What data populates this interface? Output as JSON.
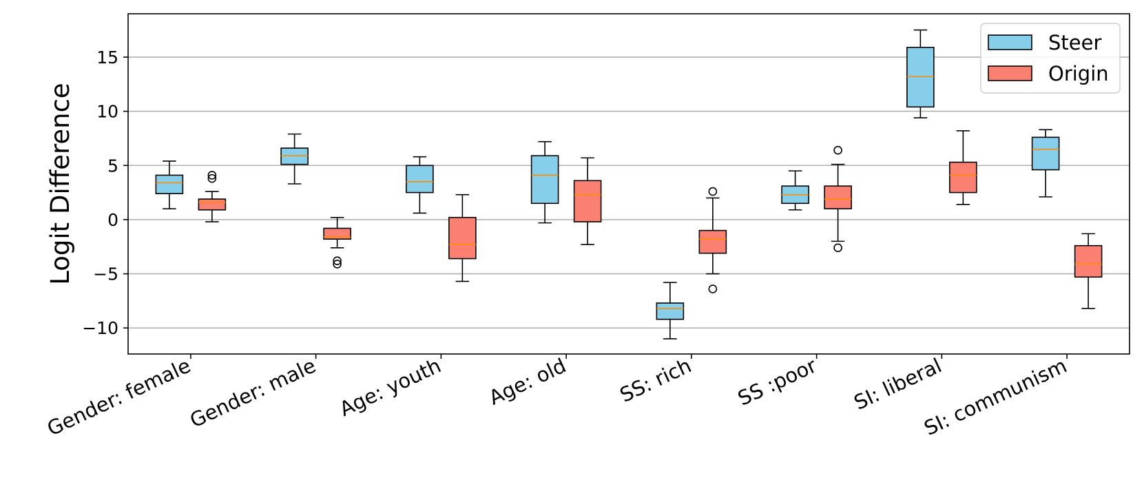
{
  "chart_data": {
    "type": "boxplot",
    "ylabel": "Logit Difference",
    "xlabel": "",
    "title": "",
    "ylim": [
      -12.4,
      19.0
    ],
    "yticks": [
      -10,
      -5,
      0,
      5,
      10,
      15
    ],
    "ytick_labels": [
      "−10",
      "−5",
      "0",
      "5",
      "10",
      "15"
    ],
    "grid": "horizontal",
    "legend_position": "top-right",
    "categories": [
      "Gender: female",
      "Gender: male",
      "Age: youth",
      "Age: old",
      "SS: rich",
      "SS :poor",
      "SI: liberal",
      "SI: communism"
    ],
    "series": [
      {
        "name": "Steer",
        "color": "#87ceeb",
        "boxes": [
          {
            "whislo": 1.0,
            "q1": 2.4,
            "med": 3.4,
            "q3": 4.1,
            "whishi": 5.4,
            "fliers": []
          },
          {
            "whislo": 3.3,
            "q1": 5.1,
            "med": 5.9,
            "q3": 6.6,
            "whishi": 7.9,
            "fliers": []
          },
          {
            "whislo": 0.6,
            "q1": 2.5,
            "med": 3.5,
            "q3": 5.0,
            "whishi": 5.8,
            "fliers": []
          },
          {
            "whislo": -0.3,
            "q1": 1.5,
            "med": 4.1,
            "q3": 5.9,
            "whishi": 7.2,
            "fliers": []
          },
          {
            "whislo": -11.0,
            "q1": -9.2,
            "med": -8.2,
            "q3": -7.7,
            "whishi": -5.8,
            "fliers": []
          },
          {
            "whislo": 0.9,
            "q1": 1.5,
            "med": 2.3,
            "q3": 3.1,
            "whishi": 4.5,
            "fliers": []
          },
          {
            "whislo": 9.4,
            "q1": 10.4,
            "med": 13.2,
            "q3": 15.9,
            "whishi": 17.5,
            "fliers": []
          },
          {
            "whislo": 2.1,
            "q1": 4.6,
            "med": 6.5,
            "q3": 7.6,
            "whishi": 8.3,
            "fliers": []
          }
        ]
      },
      {
        "name": "Origin",
        "color": "#fa8072",
        "boxes": [
          {
            "whislo": -0.2,
            "q1": 0.9,
            "med": 1.6,
            "q3": 1.9,
            "whishi": 2.6,
            "fliers": [
              3.8,
              4.1
            ]
          },
          {
            "whislo": -2.6,
            "q1": -1.8,
            "med": -1.6,
            "q3": -0.8,
            "whishi": 0.2,
            "fliers": [
              -3.8,
              -4.1
            ]
          },
          {
            "whislo": -5.7,
            "q1": -3.6,
            "med": -2.3,
            "q3": 0.2,
            "whishi": 2.3,
            "fliers": []
          },
          {
            "whislo": -2.3,
            "q1": -0.2,
            "med": 2.3,
            "q3": 3.6,
            "whishi": 5.7,
            "fliers": []
          },
          {
            "whislo": -5.0,
            "q1": -3.1,
            "med": -1.8,
            "q3": -1.0,
            "whishi": 2.0,
            "fliers": [
              2.6,
              -6.4
            ]
          },
          {
            "whislo": -2.0,
            "q1": 1.0,
            "med": 1.9,
            "q3": 3.1,
            "whishi": 5.1,
            "fliers": [
              6.4,
              -2.6
            ]
          },
          {
            "whislo": 1.4,
            "q1": 2.5,
            "med": 4.1,
            "q3": 5.3,
            "whishi": 8.2,
            "fliers": []
          },
          {
            "whislo": -8.2,
            "q1": -5.3,
            "med": -4.1,
            "q3": -2.4,
            "whishi": -1.3,
            "fliers": []
          }
        ]
      }
    ]
  },
  "colors": {
    "median": "#ff8c00",
    "grid": "#b0b0b0",
    "frame": "#000000"
  }
}
